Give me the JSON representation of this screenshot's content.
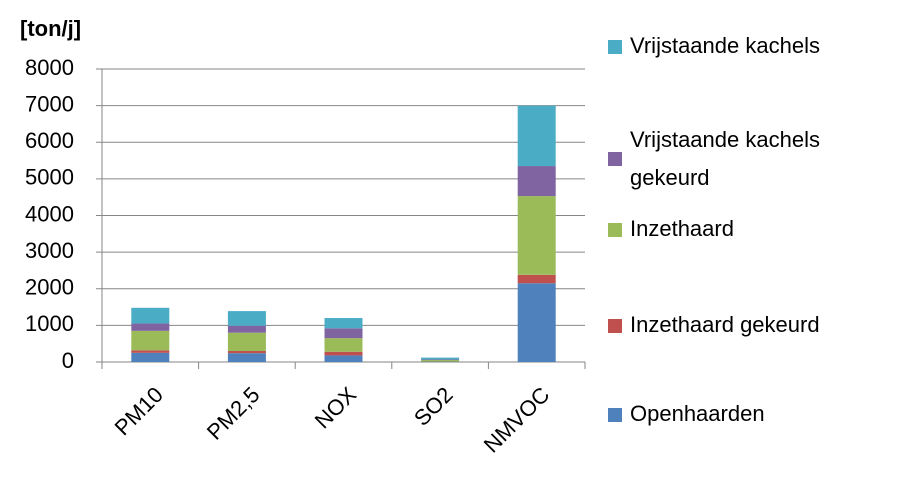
{
  "chart_data": {
    "type": "stacked_bar",
    "y_label": "[ton/j]",
    "categories": [
      "PM10",
      "PM2,5",
      "NOX",
      "SO2",
      "NMVOC"
    ],
    "series": [
      {
        "name": "Openhaarden",
        "color": "#4f81bd",
        "values": [
          250,
          240,
          180,
          10,
          2150
        ]
      },
      {
        "name": "Inzethaard gekeurd",
        "color": "#c0504d",
        "values": [
          70,
          60,
          100,
          5,
          230
        ]
      },
      {
        "name": "Inzethaard",
        "color": "#9bbb59",
        "values": [
          530,
          500,
          370,
          40,
          2150
        ]
      },
      {
        "name": "Vrijstaande kachels gekeurd",
        "color": "#8064a2",
        "values": [
          200,
          190,
          270,
          15,
          820
        ]
      },
      {
        "name": "Vrijstaande kachels",
        "color": "#4bacc6",
        "values": [
          430,
          400,
          280,
          50,
          1650
        ]
      }
    ],
    "ylim": [
      0,
      8000
    ],
    "yticks": [
      0,
      1000,
      2000,
      3000,
      4000,
      5000,
      6000,
      7000,
      8000
    ],
    "grid": true
  }
}
